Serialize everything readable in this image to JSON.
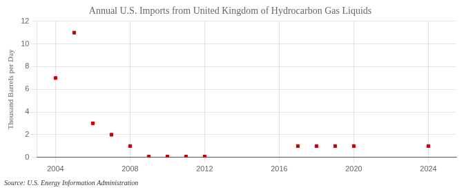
{
  "chart_data": {
    "type": "scatter",
    "title": "Annual U.S. Imports from United Kingdom of Hydrocarbon Gas Liquids",
    "y_label": "Thousand Barrels per Day",
    "source": "Source: U.S. Energy Information Administration",
    "x": [
      2004,
      2005,
      2006,
      2007,
      2008,
      2009,
      2010,
      2011,
      2012,
      2017,
      2018,
      2019,
      2020,
      2024
    ],
    "values": [
      7.0,
      11.0,
      3.0,
      2.0,
      1.0,
      0.07,
      0.07,
      0.07,
      0.07,
      1.0,
      1.0,
      1.0,
      1.0,
      1.0
    ],
    "color": "#cc0000",
    "marker": "square",
    "xlim": [
      2003.0,
      2025.5
    ],
    "ylim": [
      0,
      12
    ],
    "xticks": [
      2004,
      2008,
      2012,
      2016,
      2020,
      2024
    ],
    "yticks": [
      0,
      2,
      4,
      6,
      8,
      10,
      12
    ],
    "grid": true
  }
}
